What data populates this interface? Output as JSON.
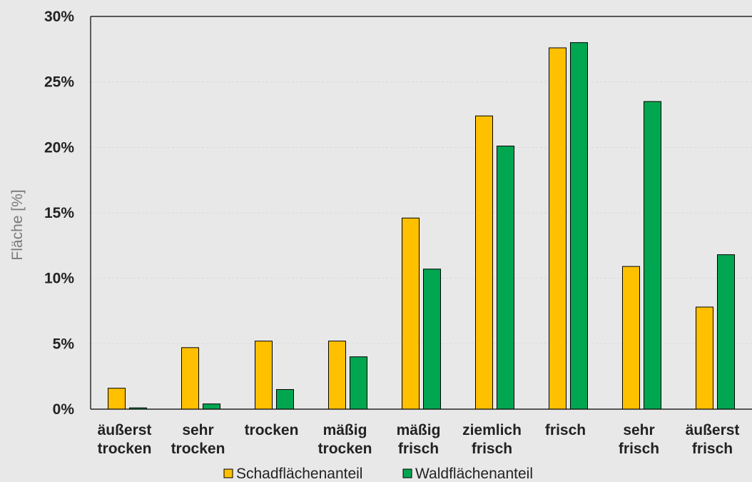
{
  "chart_data": {
    "type": "bar",
    "ylabel": "Fläche [%]",
    "xlabel": "",
    "ylim": [
      0,
      30
    ],
    "yticks": [
      "0%",
      "5%",
      "10%",
      "15%",
      "20%",
      "25%",
      "30%"
    ],
    "grid": true,
    "legend": "bottom",
    "categories": [
      [
        "äußerst",
        "trocken"
      ],
      [
        "sehr",
        "trocken"
      ],
      [
        "trocken"
      ],
      [
        "mäßig",
        "trocken"
      ],
      [
        "mäßig",
        "frisch"
      ],
      [
        "ziemlich",
        "frisch"
      ],
      [
        "frisch"
      ],
      [
        "sehr",
        "frisch"
      ],
      [
        "äußerst",
        "frisch"
      ]
    ],
    "series": [
      {
        "name": "Schadflächenanteil",
        "color": "#ffc000",
        "values": [
          1.6,
          4.7,
          5.2,
          5.2,
          14.6,
          22.4,
          27.6,
          10.9,
          7.8
        ]
      },
      {
        "name": "Waldflächenanteil",
        "color": "#00a650",
        "values": [
          0.1,
          0.4,
          1.5,
          4.0,
          10.7,
          20.1,
          28.0,
          23.5,
          11.8
        ]
      }
    ]
  }
}
